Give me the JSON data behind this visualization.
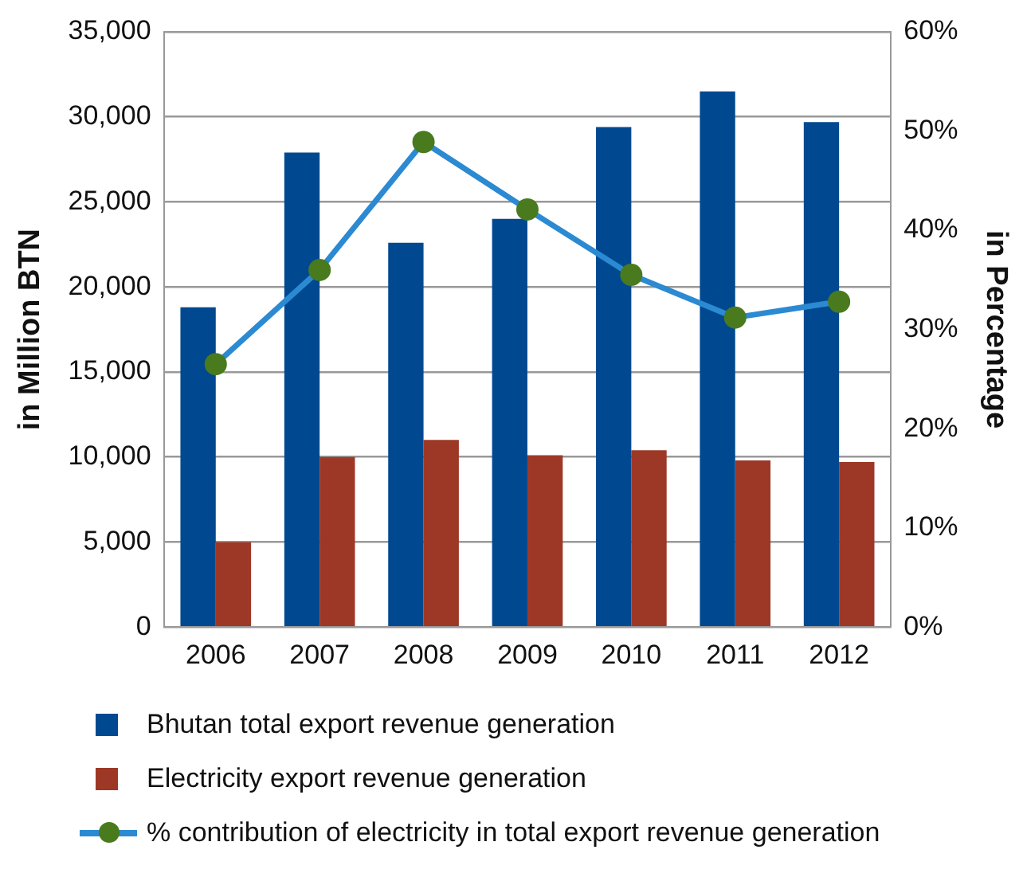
{
  "chart_data": {
    "type": "bar",
    "categories": [
      "2006",
      "2007",
      "2008",
      "2009",
      "2010",
      "2011",
      "2012"
    ],
    "ylabel": "in Million BTN",
    "y2label": "in Percentage",
    "series": [
      {
        "name": "Bhutan total export revenue generation",
        "color": "#004990",
        "values": [
          18800,
          27900,
          22600,
          24000,
          29400,
          31500,
          29700
        ]
      },
      {
        "name": "Electricity export revenue generation",
        "color": "#9e3826",
        "values": [
          5000,
          10000,
          11000,
          10100,
          10400,
          9800,
          9700
        ]
      },
      {
        "name": "% contribution of electricity in total export revenue generation",
        "type": "line",
        "axis": "y2",
        "color": "#2b8ad2",
        "colors": [
          "#4a7a1e",
          "#4a7a1e",
          "#4a7a1e",
          "#4a7a1e",
          "#4a7a1e",
          "#4a7a1e",
          "#4a7a1e"
        ],
        "values": [
          26.5,
          36.0,
          48.9,
          42.1,
          35.5,
          31.2,
          32.8
        ]
      }
    ],
    "ylim": [
      0,
      35000
    ],
    "yticks": [
      {
        "value": 0,
        "label": "0"
      },
      {
        "value": 5000,
        "label": "5,000"
      },
      {
        "value": 10000,
        "label": "10,000"
      },
      {
        "value": 15000,
        "label": "15,000"
      },
      {
        "value": 20000,
        "label": "20,000"
      },
      {
        "value": 25000,
        "label": "25,000"
      },
      {
        "value": 30000,
        "label": "30,000"
      },
      {
        "value": 35000,
        "label": "35,000"
      }
    ],
    "y2lim": [
      0,
      60
    ],
    "y2ticks": [
      {
        "value": 0,
        "label": "0%"
      },
      {
        "value": 10,
        "label": "10%"
      },
      {
        "value": 20,
        "label": "20%"
      },
      {
        "value": 30,
        "label": "30%"
      },
      {
        "value": 40,
        "label": "40%"
      },
      {
        "value": 50,
        "label": "50%"
      },
      {
        "value": 60,
        "label": "60%"
      }
    ],
    "grid": "y",
    "legend": "bottom",
    "marker": "circle",
    "line_style": "solid"
  }
}
